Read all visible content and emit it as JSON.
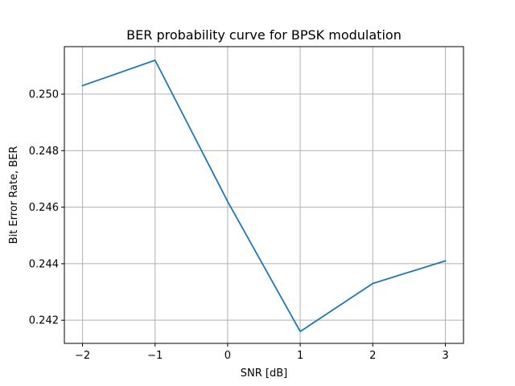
{
  "chart_data": {
    "type": "line",
    "title": "BER probability curve for BPSK modulation",
    "xlabel": "SNR [dB]",
    "ylabel": "Bit Error Rate, BER",
    "x": [
      -2,
      -1,
      0,
      1,
      2,
      3
    ],
    "series": [
      {
        "values": [
          0.2503,
          0.2512,
          0.2462,
          0.2416,
          0.2433,
          0.2441
        ]
      }
    ],
    "xlim": [
      -2.25,
      3.25
    ],
    "ylim": [
      0.24118,
      0.25168
    ],
    "xticks": [
      -2,
      -1,
      0,
      1,
      2,
      3
    ],
    "xtick_labels": [
      "−2",
      "−1",
      "0",
      "1",
      "2",
      "3"
    ],
    "yticks": [
      0.242,
      0.244,
      0.246,
      0.248,
      0.25
    ],
    "ytick_labels": [
      "0.242",
      "0.244",
      "0.246",
      "0.248",
      "0.250"
    ],
    "grid": true,
    "line_color": "#1f77b4"
  }
}
